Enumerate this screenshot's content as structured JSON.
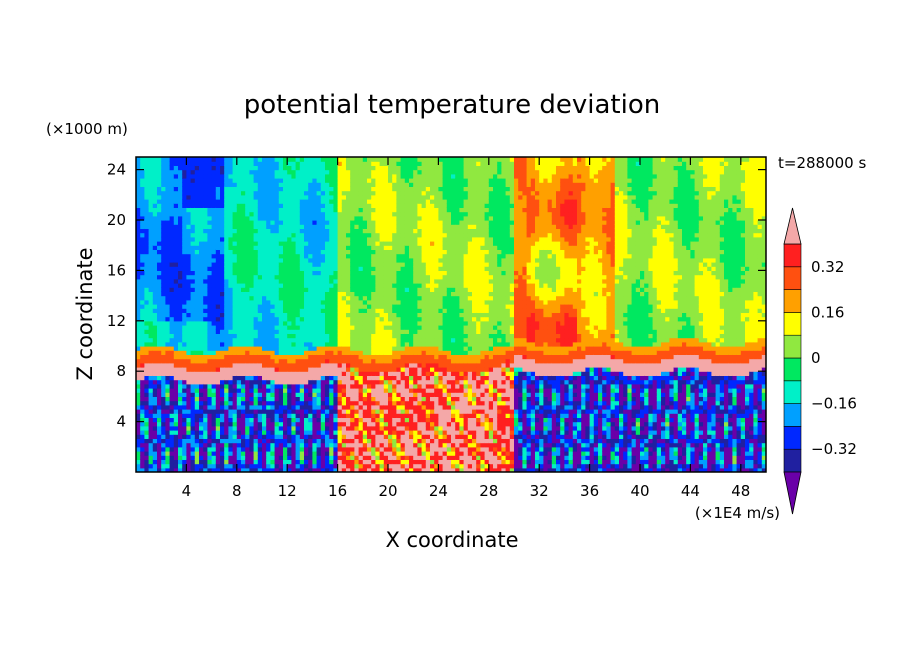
{
  "chart_data": {
    "type": "heatmap",
    "title": "potential temperature deviation",
    "time_label": "t=288000 s",
    "xlabel": "X coordinate",
    "ylabel": "Z coordinate",
    "x_unit": "(×1E4 m/s)",
    "y_unit": "(×1000 m)",
    "xlim": [
      0,
      50
    ],
    "ylim": [
      0,
      25
    ],
    "x_ticks": [
      4,
      8,
      12,
      16,
      20,
      24,
      28,
      32,
      36,
      40,
      44,
      48
    ],
    "y_ticks": [
      4,
      8,
      12,
      16,
      20,
      24
    ],
    "colorbar": {
      "levels": [
        -0.4,
        -0.32,
        -0.24,
        -0.16,
        -0.08,
        0,
        0.08,
        0.16,
        0.24,
        0.32,
        0.4
      ],
      "tick_labels": [
        "0.32",
        "0.16",
        "0",
        "−0.16",
        "−0.32"
      ],
      "tick_values": [
        0.32,
        0.16,
        0,
        -0.16,
        -0.32
      ],
      "colors": [
        "#6a00a8",
        "#2020a0",
        "#0028ff",
        "#00a0ff",
        "#00f0c8",
        "#00e860",
        "#90e840",
        "#ffff00",
        "#ffa000",
        "#ff5010",
        "#ff2020",
        "#f4a8a8"
      ]
    },
    "regions": {
      "upper_layer_mean": {
        "x_0_16": -0.12,
        "x_16_30": 0.04,
        "x_30_38": 0.2,
        "x_38_50": 0.04
      },
      "inversion_height": 8.5,
      "lower_layer_mean": {
        "x_0_16": -0.3,
        "x_16_30": 0.42,
        "x_30_50": -0.32
      }
    }
  }
}
